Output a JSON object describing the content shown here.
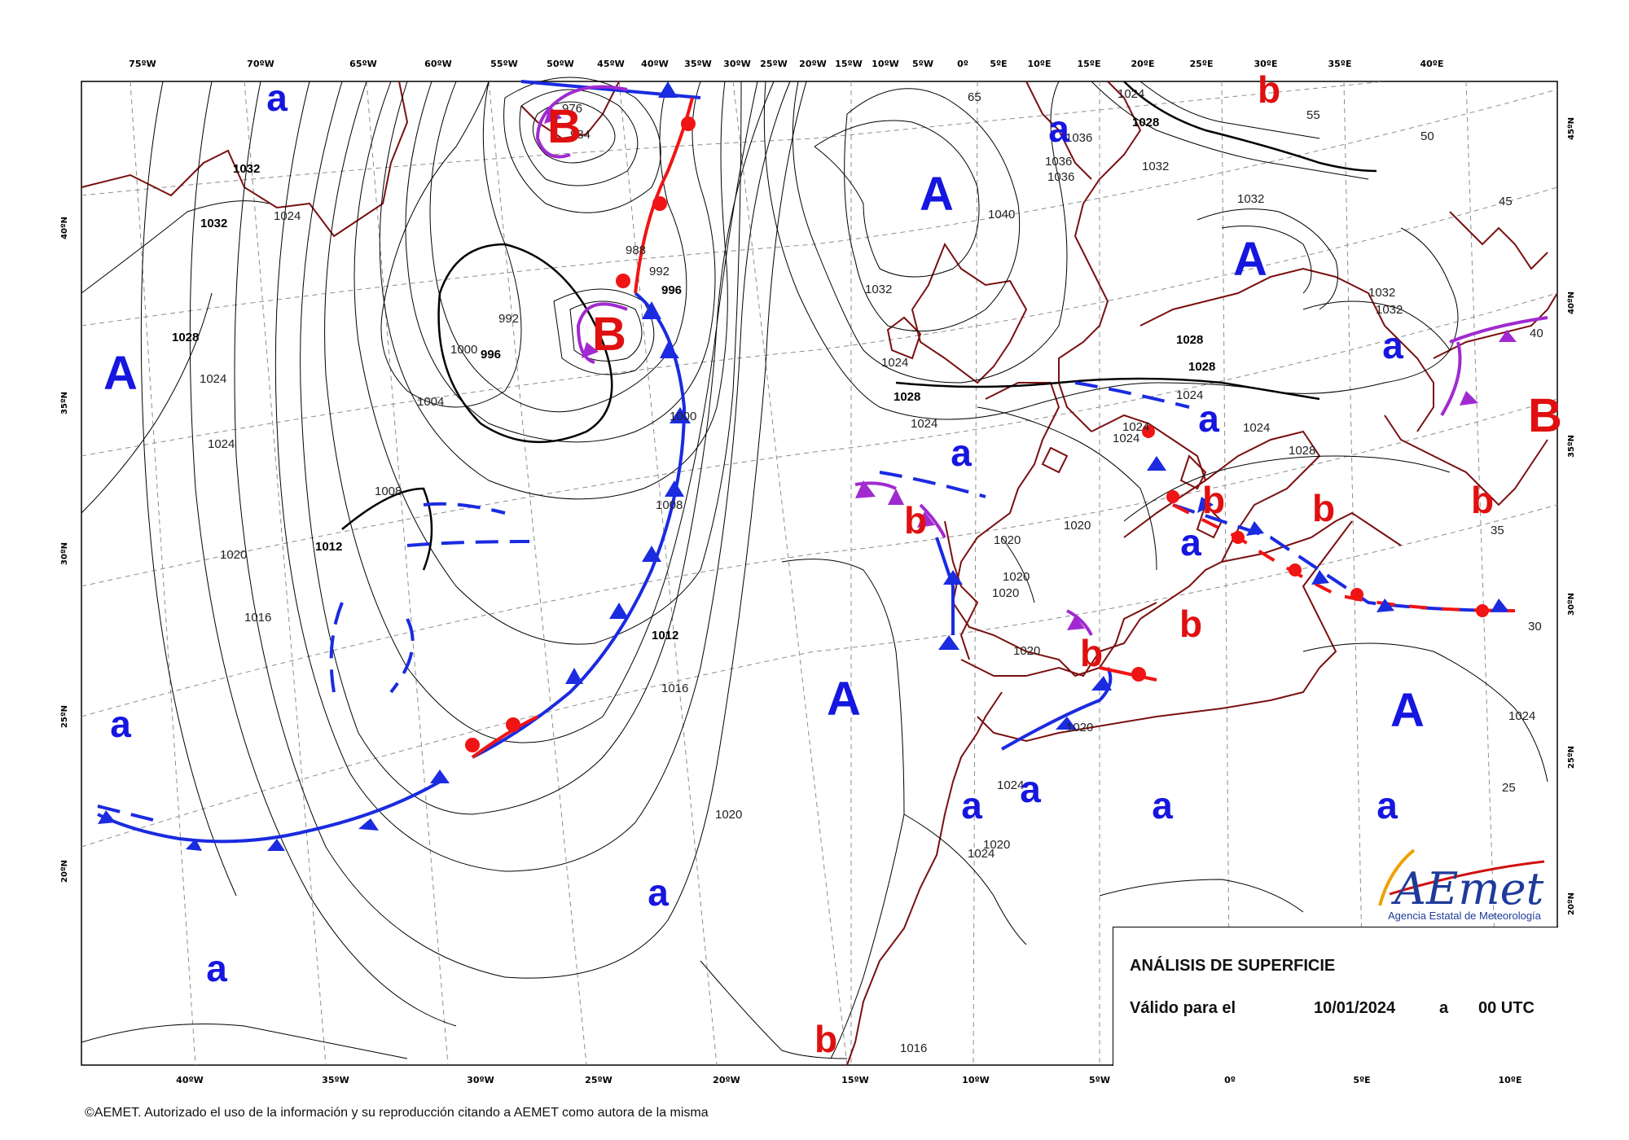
{
  "map": {
    "title": "ANÁLISIS DE SUPERFICIE",
    "valid_label": "Válido para el",
    "date": "10/01/2024",
    "at": "a",
    "time": "00 UTC",
    "copyright": "©AEMET. Autorizado el uso de la información y su reproducción citando a AEMET como autora de la misma",
    "logo": {
      "wordmark": "AEmet",
      "subtitle": "Agencia Estatal de Meteorología"
    },
    "top_lon_labels": [
      "75ºW",
      "70ºW",
      "65ºW",
      "60ºW",
      "55ºW",
      "50ºW",
      "45ºW",
      "40ºW",
      "35ºW",
      "30ºW",
      "25ºW",
      "20ºW",
      "15ºW",
      "10ºW",
      "5ºW",
      "0º",
      "5ºE",
      "10ºE",
      "15ºE",
      "20ºE",
      "25ºE",
      "30ºE",
      "35ºE",
      "40ºE"
    ],
    "bottom_lon_labels": [
      "40ºW",
      "35ºW",
      "30ºW",
      "25ºW",
      "20ºW",
      "15ºW",
      "10ºW",
      "5ºW",
      "0º",
      "5ºE",
      "10ºE"
    ],
    "left_lat_labels": [
      "40ºN",
      "35ºN",
      "30ºN",
      "25ºN",
      "20ºN"
    ],
    "right_lat_labels": [
      "45ºN",
      "40ºN",
      "35ºN",
      "30ºN",
      "25ºN",
      "20ºN"
    ],
    "inner_lat_labels": [
      "65",
      "55",
      "50",
      "45",
      "40",
      "35",
      "30",
      "25"
    ],
    "isobar_labels": [
      "976",
      "984",
      "988",
      "992",
      "996",
      "992",
      "996",
      "1000",
      "1000",
      "1004",
      "1008",
      "1008",
      "1012",
      "1012",
      "1016",
      "1016",
      "1020",
      "1020",
      "1020",
      "1020",
      "1020",
      "1020",
      "1020",
      "1020",
      "1020",
      "1024",
      "1024",
      "1024",
      "1024",
      "1024",
      "1024",
      "1024",
      "1024",
      "1024",
      "1024",
      "1024",
      "1024",
      "1028",
      "1028",
      "1028",
      "1028",
      "1028",
      "1028",
      "1032",
      "1032",
      "1032",
      "1032",
      "1032",
      "1032",
      "1036",
      "1036",
      "1036",
      "1040",
      "1032",
      "1024",
      "1016"
    ],
    "pressure_centers": [
      {
        "type": "A",
        "size": "big"
      },
      {
        "type": "A",
        "size": "big"
      },
      {
        "type": "A",
        "size": "big"
      },
      {
        "type": "A",
        "size": "big"
      },
      {
        "type": "A",
        "size": "big"
      },
      {
        "type": "a"
      },
      {
        "type": "a"
      },
      {
        "type": "a"
      },
      {
        "type": "a"
      },
      {
        "type": "a"
      },
      {
        "type": "a"
      },
      {
        "type": "a"
      },
      {
        "type": "a"
      },
      {
        "type": "a"
      },
      {
        "type": "a"
      },
      {
        "type": "a"
      },
      {
        "type": "a"
      },
      {
        "type": "a"
      },
      {
        "type": "B",
        "size": "big"
      },
      {
        "type": "B",
        "size": "big"
      },
      {
        "type": "B",
        "size": "big"
      },
      {
        "type": "b"
      },
      {
        "type": "b"
      },
      {
        "type": "b"
      },
      {
        "type": "b"
      },
      {
        "type": "b"
      },
      {
        "type": "b"
      },
      {
        "type": "b"
      },
      {
        "type": "b"
      }
    ],
    "colors": {
      "cold_front": "#1a2be0",
      "warm_front": "#f01414",
      "occluded_front": "#a02ad0",
      "high": "#1616e0",
      "low": "#e01010",
      "coast": "#7a1010",
      "isobar": "#000000",
      "graticule": "#8c8c8c"
    }
  }
}
